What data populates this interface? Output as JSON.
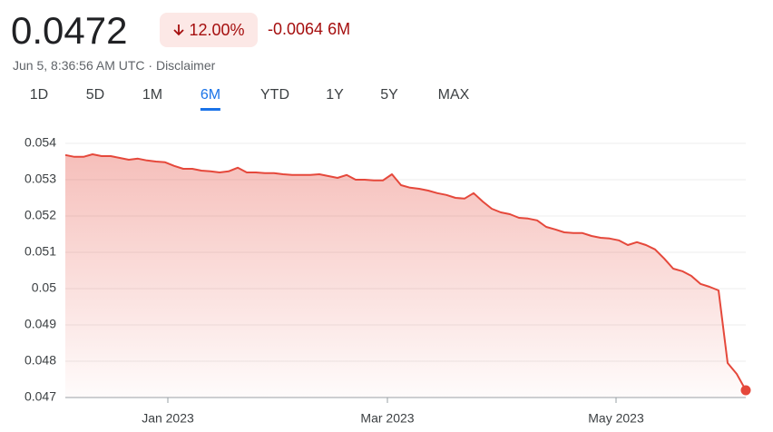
{
  "header": {
    "price": "0.0472",
    "change_percent": "12.00%",
    "change_abs": "-0.0064",
    "change_period": "6M",
    "subtitle": "Jun 5, 8:36:56 AM UTC · Disclaimer"
  },
  "tabs": {
    "items": [
      "1D",
      "5D",
      "1M",
      "6M",
      "YTD",
      "1Y",
      "5Y",
      "MAX"
    ],
    "selected": 3
  },
  "chart_data": {
    "type": "line",
    "color": "#e5483b",
    "grid": true,
    "values": [
      0.05368,
      0.05363,
      0.05363,
      0.0537,
      0.05365,
      0.05365,
      0.0536,
      0.05355,
      0.05358,
      0.05353,
      0.0535,
      0.05348,
      0.05338,
      0.0533,
      0.0533,
      0.05325,
      0.05323,
      0.0532,
      0.05323,
      0.05333,
      0.0532,
      0.0532,
      0.05318,
      0.05318,
      0.05315,
      0.05313,
      0.05313,
      0.05313,
      0.05315,
      0.0531,
      0.05305,
      0.05313,
      0.053,
      0.053,
      0.05298,
      0.05298,
      0.05315,
      0.05285,
      0.05278,
      0.05275,
      0.0527,
      0.05263,
      0.05258,
      0.0525,
      0.05248,
      0.05263,
      0.0524,
      0.0522,
      0.0521,
      0.05205,
      0.05195,
      0.05193,
      0.05188,
      0.0517,
      0.05163,
      0.05155,
      0.05153,
      0.05153,
      0.05145,
      0.0514,
      0.05138,
      0.05133,
      0.0512,
      0.05128,
      0.0512,
      0.05108,
      0.05083,
      0.05055,
      0.05048,
      0.05035,
      0.05013,
      0.05005,
      0.04995,
      0.04795,
      0.04765,
      0.0472
    ],
    "xlim": [
      0,
      75
    ],
    "xticks": [
      {
        "value": 11.3,
        "label": "Jan 2023"
      },
      {
        "value": 35.5,
        "label": "Mar 2023"
      },
      {
        "value": 60.7,
        "label": "May 2023"
      }
    ],
    "ylim": [
      0.047,
      0.054
    ],
    "yticks": [
      0.054,
      0.053,
      0.052,
      0.051,
      0.05,
      0.049,
      0.048,
      0.047
    ]
  }
}
